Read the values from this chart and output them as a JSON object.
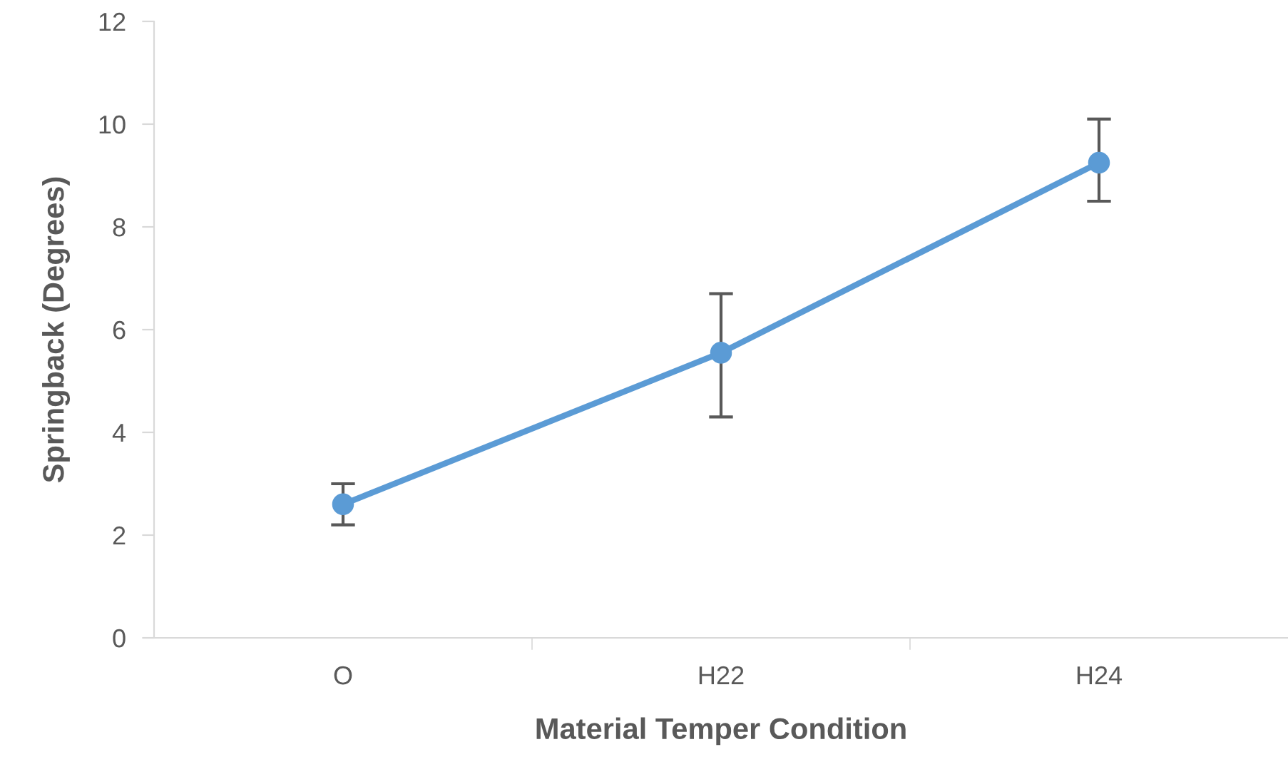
{
  "chart_data": {
    "type": "line",
    "xlabel": "Material Temper Condition",
    "ylabel": "Springback (Degrees)",
    "categories": [
      "O",
      "H22",
      "H24"
    ],
    "series": [
      {
        "color": "#5b9bd5",
        "values": [
          2.6,
          5.55,
          9.25
        ],
        "errors": [
          [
            2.2,
            3.0
          ],
          [
            4.3,
            6.7
          ],
          [
            8.5,
            10.1
          ]
        ]
      }
    ],
    "ylim": [
      0,
      12
    ],
    "yticks": [
      0,
      2,
      4,
      6,
      8,
      10,
      12
    ],
    "marker": "circle",
    "line_style": "solid",
    "grid": false,
    "legend": false
  }
}
